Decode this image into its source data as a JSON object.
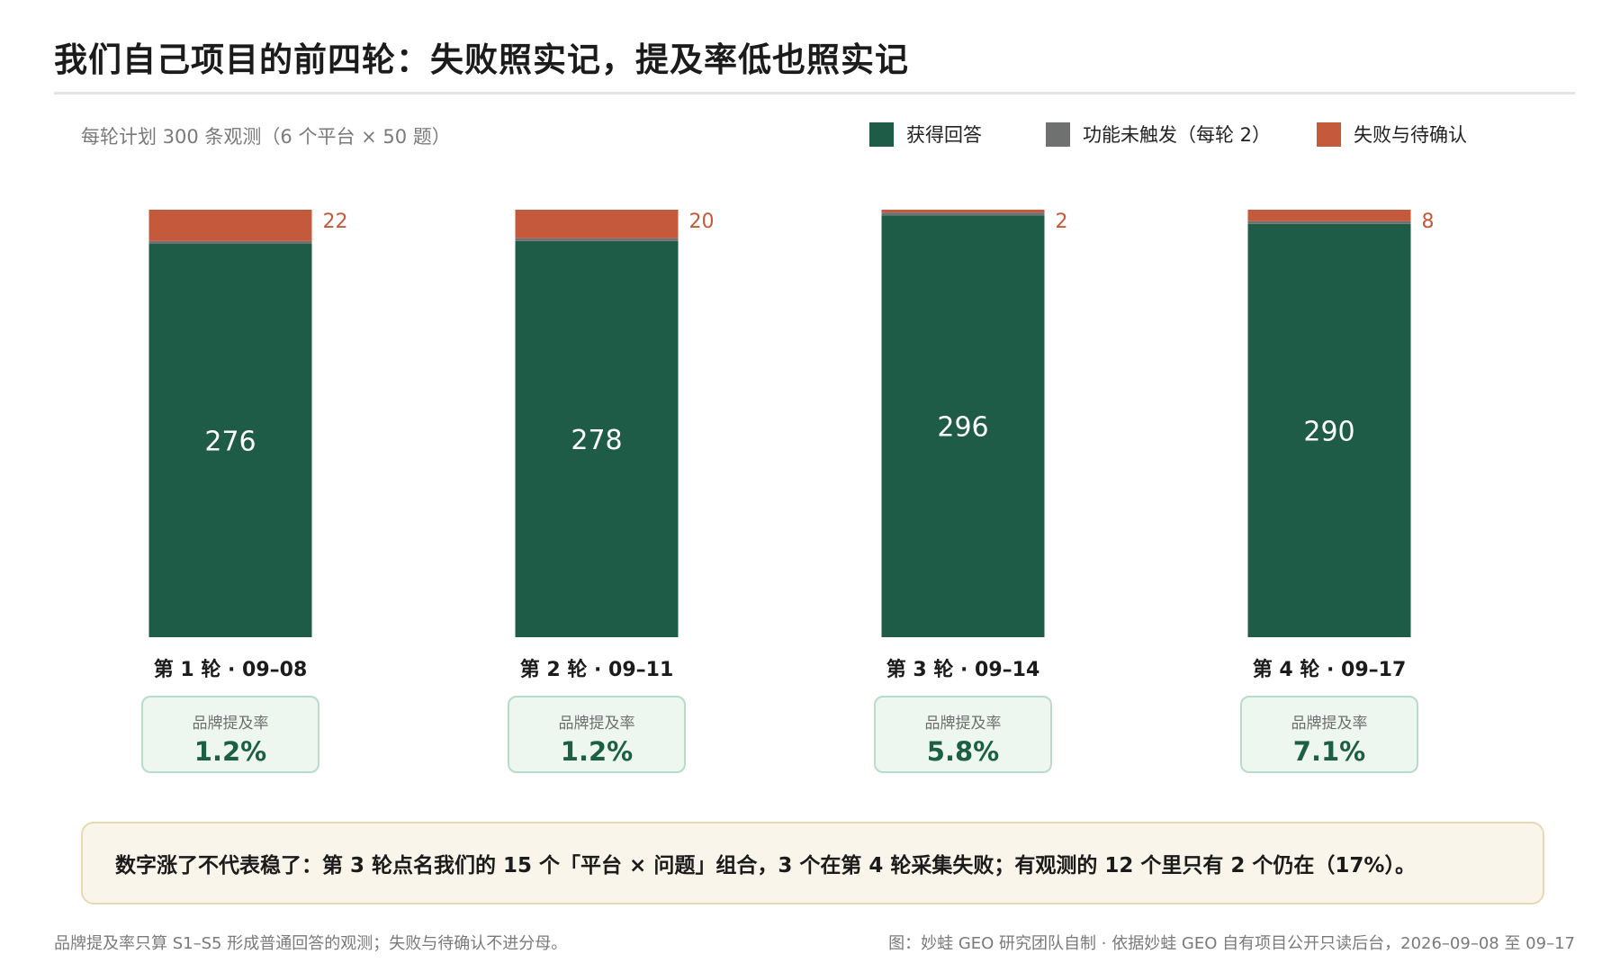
{
  "page": {
    "title": "我们自己项目的前四轮：失败照实记，提及率低也照实记",
    "subtitle": "每轮计划 300 条观测（6 个平台 × 50 题）"
  },
  "legend": [
    {
      "label": "获得回答",
      "color": "#1e5c47"
    },
    {
      "label": "功能未触发（每轮 2）",
      "color": "#6e7170"
    },
    {
      "label": "失败与待确认",
      "color": "#c45a3b"
    }
  ],
  "chart_data": {
    "type": "bar",
    "stacked": true,
    "categories": [
      "第 1 轮 · 09–08",
      "第 2 轮 · 09–11",
      "第 3 轮 · 09–14",
      "第 4 轮 · 09–17"
    ],
    "series": [
      {
        "name": "获得回答",
        "values": [
          276,
          278,
          296,
          290
        ],
        "color": "#1e5c47"
      },
      {
        "name": "功能未触发（每轮 2）",
        "values": [
          2,
          2,
          2,
          2
        ],
        "color": "#6e7170"
      },
      {
        "name": "失败与待确认",
        "values": [
          22,
          20,
          2,
          8
        ],
        "color": "#c45a3b"
      }
    ],
    "ylim": [
      0,
      300
    ],
    "grid": false,
    "legend_position": "top-right"
  },
  "rate_cards": [
    {
      "title": "品牌提及率",
      "value": "1.2%"
    },
    {
      "title": "品牌提及率",
      "value": "1.2%"
    },
    {
      "title": "品牌提及率",
      "value": "5.8%"
    },
    {
      "title": "品牌提及率",
      "value": "7.1%"
    }
  ],
  "callout": {
    "text": "数字涨了不代表稳了：第 3 轮点名我们的 15 个「平台 × 问题」组合，3 个在第 4 轮采集失败；有观测的 12 个里只有 2 个仍在（17%）。"
  },
  "footer": {
    "left": "品牌提及率只算 S1–S5 形成普通回答的观测；失败与待确认不进分母。",
    "right": "图：妙蛙 GEO 研究团队自制 · 依据妙蛙 GEO 自有项目公开只读后台，2026–09–08 至 09–17"
  }
}
